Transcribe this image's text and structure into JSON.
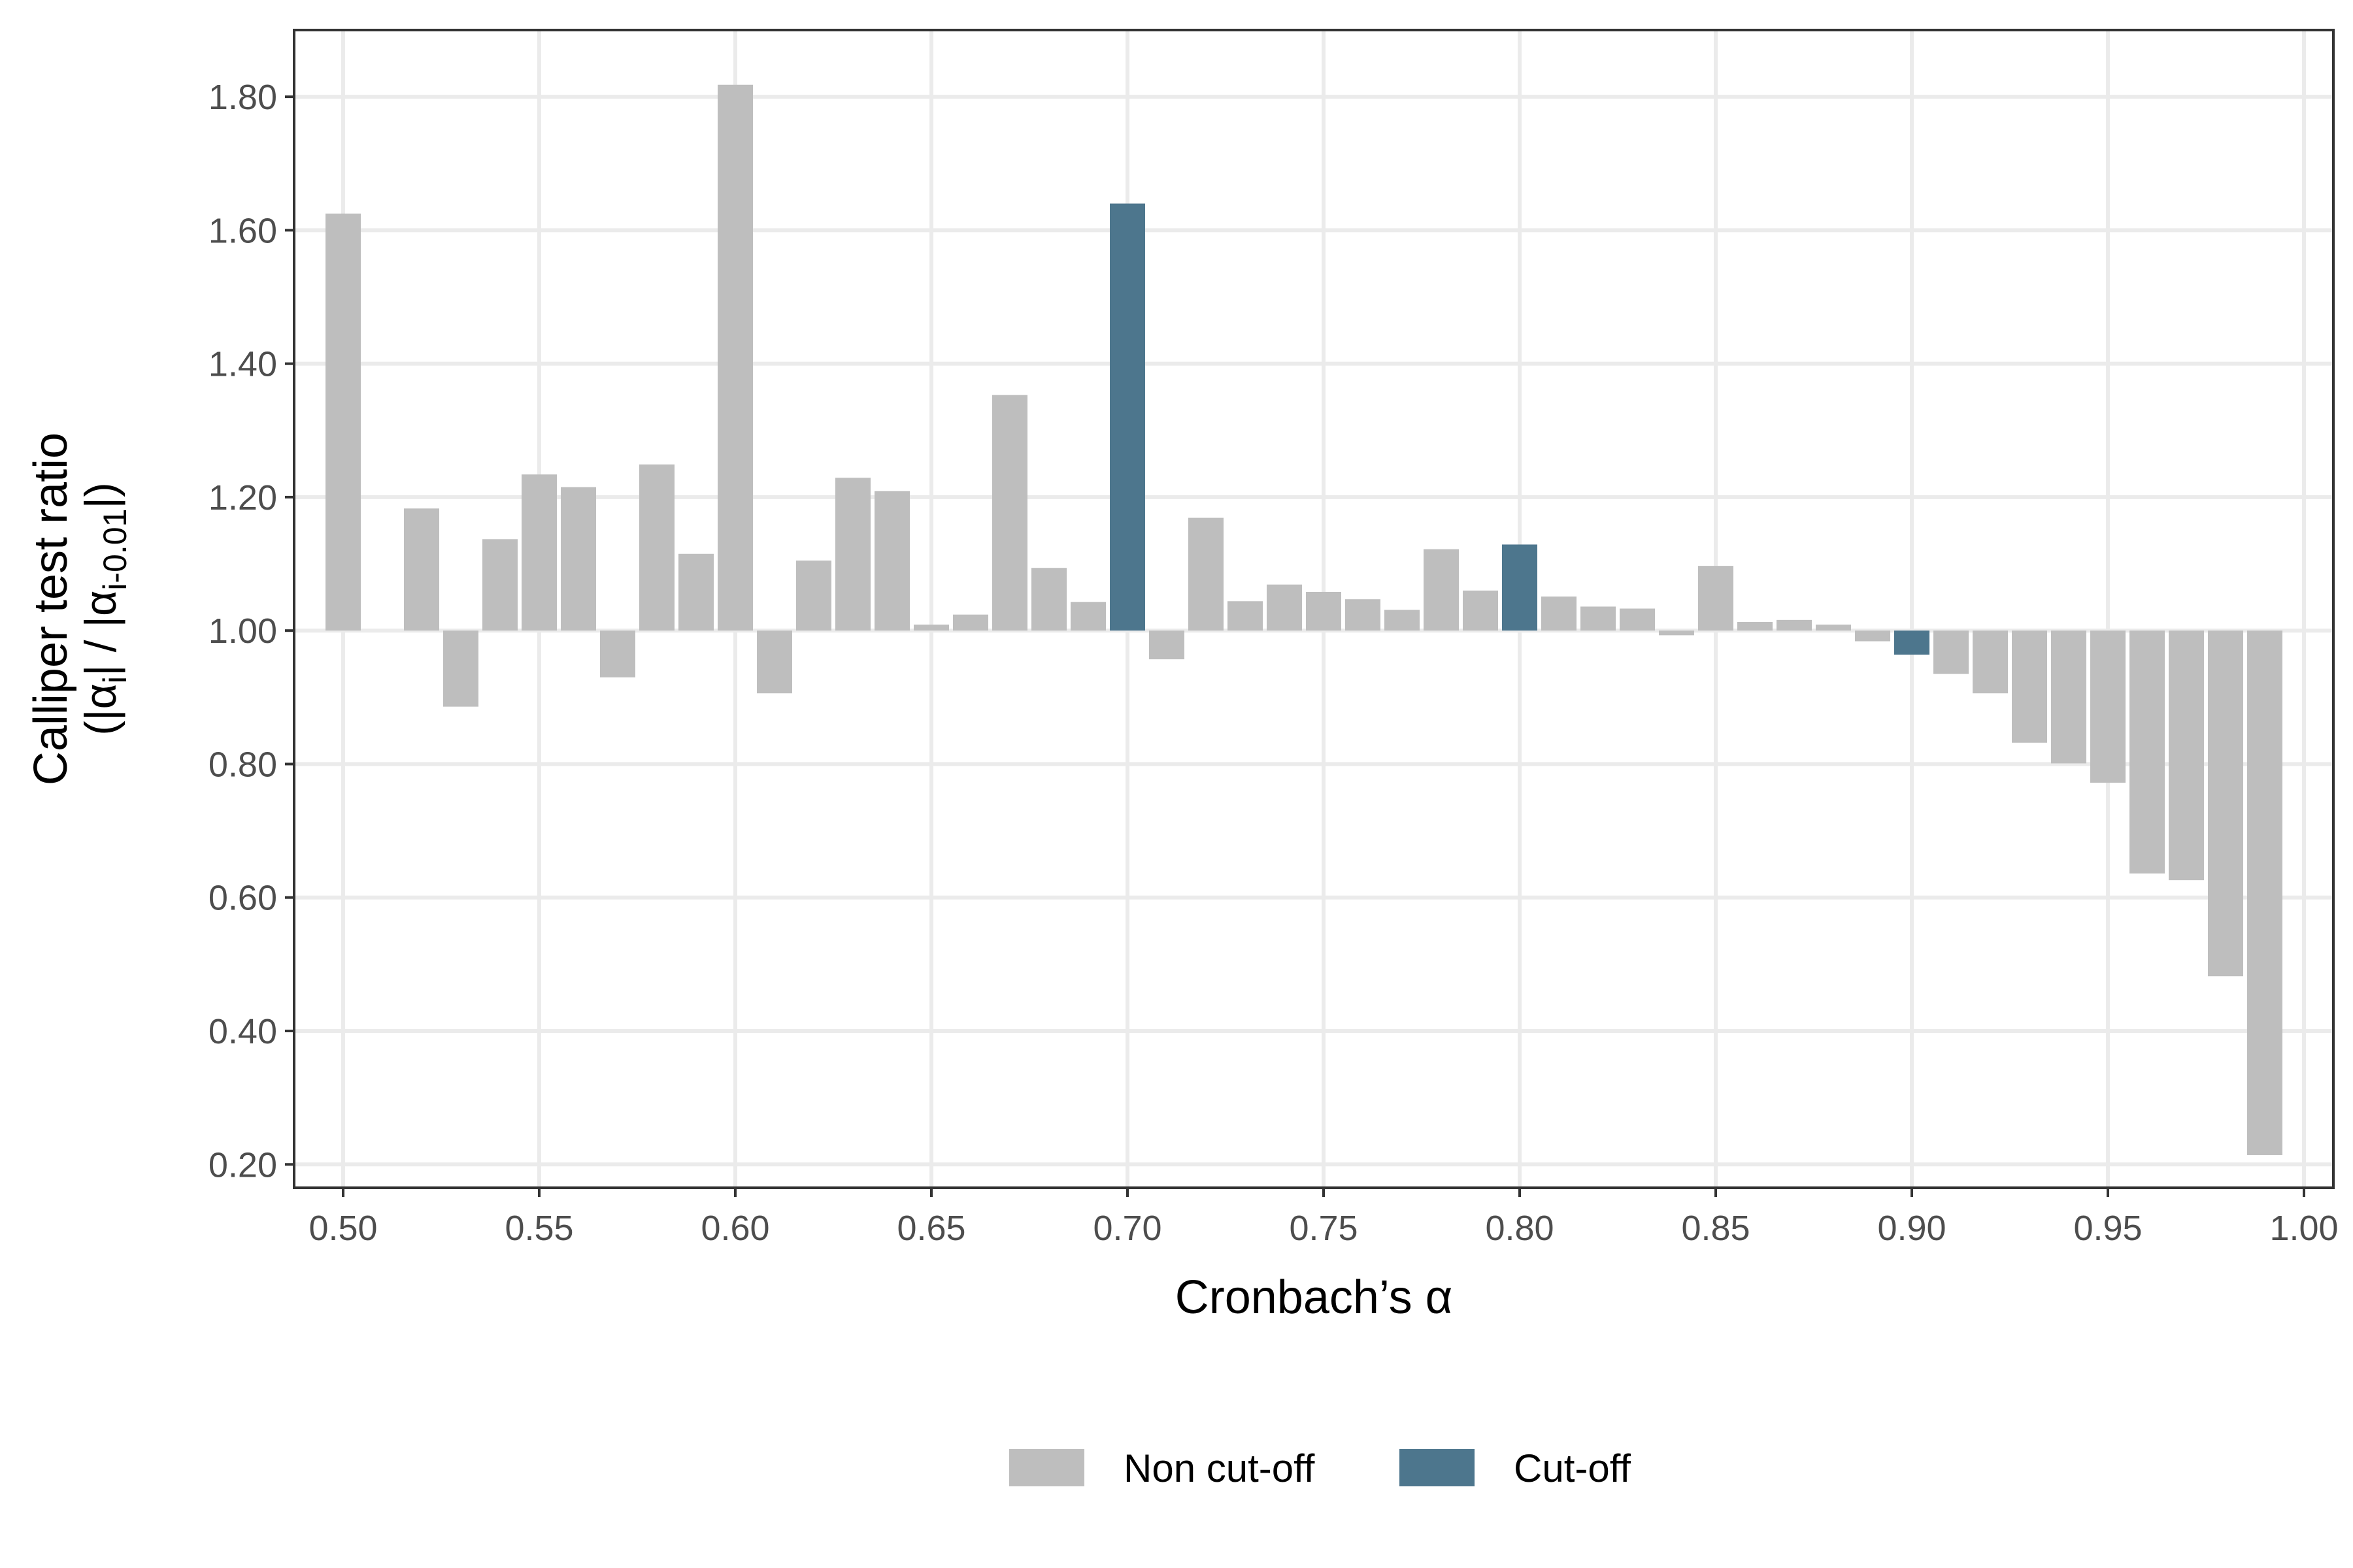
{
  "chart_data": {
    "type": "bar",
    "xlabel": "Cronbach’s α",
    "ylabel_line1": "Calliper test ratio",
    "ylabel_line2": {
      "parts": [
        "(|α",
        "i",
        "| / |α",
        "i-0.01",
        "|)"
      ]
    },
    "x_ticks": [
      "0.50",
      "0.55",
      "0.60",
      "0.65",
      "0.70",
      "0.75",
      "0.80",
      "0.85",
      "0.90",
      "0.95",
      "1.00"
    ],
    "y_ticks": [
      "0.20",
      "0.40",
      "0.60",
      "0.80",
      "1.00",
      "1.20",
      "1.40",
      "1.60",
      "1.80"
    ],
    "xlim": [
      0.4875,
      1.0075
    ],
    "ylim": [
      0.165,
      1.9
    ],
    "baseline": 1.0,
    "grid": true,
    "legend_position": "bottom",
    "colors": {
      "Non cut-off": "#bebebe",
      "Cut-off": "#4d768d"
    },
    "legend": [
      {
        "label": "Non cut-off",
        "color": "#bebebe"
      },
      {
        "label": "Cut-off",
        "color": "#4d768d"
      }
    ],
    "x": [
      0.5,
      0.52,
      0.53,
      0.54,
      0.55,
      0.56,
      0.57,
      0.58,
      0.59,
      0.6,
      0.61,
      0.62,
      0.63,
      0.64,
      0.65,
      0.66,
      0.67,
      0.68,
      0.69,
      0.7,
      0.71,
      0.72,
      0.73,
      0.74,
      0.75,
      0.76,
      0.77,
      0.78,
      0.79,
      0.8,
      0.81,
      0.82,
      0.83,
      0.84,
      0.85,
      0.86,
      0.87,
      0.88,
      0.89,
      0.9,
      0.91,
      0.92,
      0.93,
      0.94,
      0.95,
      0.96,
      0.97,
      0.98,
      0.99
    ],
    "values": [
      1.625,
      1.183,
      0.886,
      1.137,
      1.234,
      1.215,
      0.93,
      1.249,
      1.115,
      1.818,
      0.906,
      1.105,
      1.229,
      1.209,
      1.009,
      1.024,
      1.353,
      1.094,
      1.043,
      1.64,
      0.957,
      1.169,
      1.044,
      1.069,
      1.058,
      1.047,
      1.031,
      1.122,
      1.06,
      1.129,
      1.051,
      1.036,
      1.033,
      0.993,
      1.097,
      1.013,
      1.016,
      1.009,
      0.984,
      0.964,
      0.935,
      0.906,
      0.832,
      0.801,
      0.772,
      0.636,
      0.626,
      0.482,
      0.214
    ],
    "groups": [
      "Non cut-off",
      "Non cut-off",
      "Non cut-off",
      "Non cut-off",
      "Non cut-off",
      "Non cut-off",
      "Non cut-off",
      "Non cut-off",
      "Non cut-off",
      "Non cut-off",
      "Non cut-off",
      "Non cut-off",
      "Non cut-off",
      "Non cut-off",
      "Non cut-off",
      "Non cut-off",
      "Non cut-off",
      "Non cut-off",
      "Non cut-off",
      "Cut-off",
      "Non cut-off",
      "Non cut-off",
      "Non cut-off",
      "Non cut-off",
      "Non cut-off",
      "Non cut-off",
      "Non cut-off",
      "Non cut-off",
      "Non cut-off",
      "Cut-off",
      "Non cut-off",
      "Non cut-off",
      "Non cut-off",
      "Non cut-off",
      "Non cut-off",
      "Non cut-off",
      "Non cut-off",
      "Non cut-off",
      "Non cut-off",
      "Cut-off",
      "Non cut-off",
      "Non cut-off",
      "Non cut-off",
      "Non cut-off",
      "Non cut-off",
      "Non cut-off",
      "Non cut-off",
      "Non cut-off",
      "Non cut-off"
    ]
  }
}
